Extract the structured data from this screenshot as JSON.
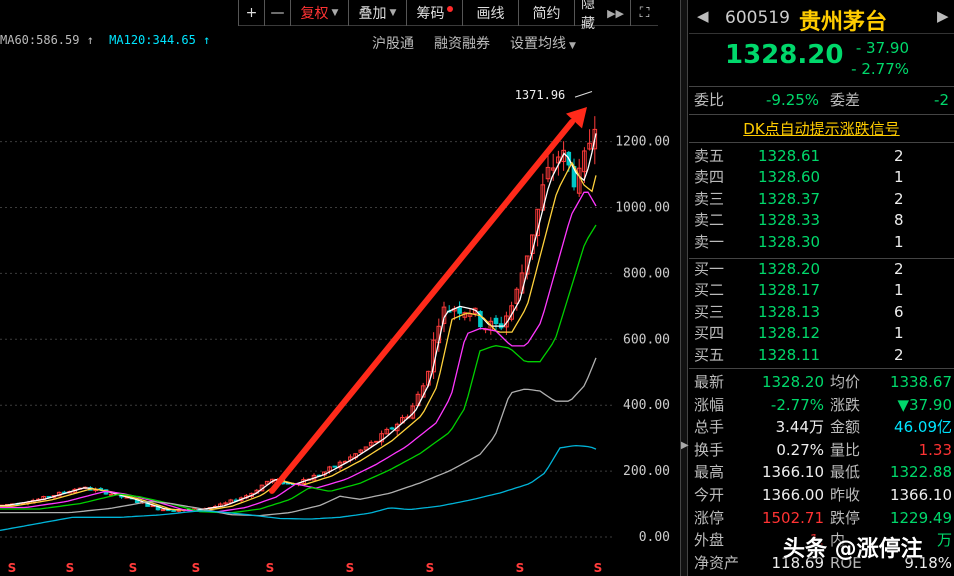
{
  "toolbar": {
    "plus": "+",
    "minus": "—",
    "fuquan": "复权",
    "diejia": "叠加",
    "chouma": "筹码",
    "huaxian": "画线",
    "jianyue": "简约",
    "yincang": "隐藏",
    "expand": "⛶"
  },
  "ma": {
    "ma60": "MA60:586.59 ↑",
    "ma120": "MA120:344.65 ↑"
  },
  "links": {
    "hugutong": "沪股通",
    "rongzi": "融资融券",
    "shezhi": "设置均线"
  },
  "chart_data": {
    "type": "candlestick",
    "y_ticks": [
      "1200.00",
      "1000.00",
      "800.00",
      "600.00",
      "400.00",
      "200.00",
      "0.00"
    ],
    "y_values": [
      1200,
      1000,
      800,
      600,
      400,
      200,
      0
    ],
    "ylim": [
      -15,
      1400
    ],
    "peak_label": "1371.96",
    "colors": {
      "up": "#ff3b3b",
      "down": "#00c8c8",
      "ma5": "#ffffff",
      "ma10": "#ffd23c",
      "ma20": "#ff37ff",
      "ma30": "#00d000",
      "ma60": "#b0b0b0",
      "ma120": "#00b4d8",
      "arrow": "#ff2a1a",
      "grid": "#3c3c3c",
      "tick": "#cccccc"
    }
  },
  "quote": {
    "code": "600519",
    "name": "贵州茅台",
    "price": "1328.20",
    "change": "- 37.90",
    "change_pct": "- 2.77%",
    "weibi_label": "委比",
    "weibi": "-9.25%",
    "weicha_label": "委差",
    "weicha": "-2",
    "dk_signal": "DK点自动提示涨跌信号"
  },
  "sell_orders": [
    {
      "label": "卖五",
      "price": "1328.61",
      "vol": "2"
    },
    {
      "label": "卖四",
      "price": "1328.60",
      "vol": "1"
    },
    {
      "label": "卖三",
      "price": "1328.37",
      "vol": "2"
    },
    {
      "label": "卖二",
      "price": "1328.33",
      "vol": "8"
    },
    {
      "label": "卖一",
      "price": "1328.30",
      "vol": "1"
    }
  ],
  "buy_orders": [
    {
      "label": "买一",
      "price": "1328.20",
      "vol": "2"
    },
    {
      "label": "买二",
      "price": "1328.17",
      "vol": "1"
    },
    {
      "label": "买三",
      "price": "1328.13",
      "vol": "6"
    },
    {
      "label": "买四",
      "price": "1328.12",
      "vol": "1"
    },
    {
      "label": "买五",
      "price": "1328.11",
      "vol": "2"
    }
  ],
  "stats": [
    {
      "l1": "最新",
      "v1": "1328.20",
      "c1": "green",
      "l2": "均价",
      "v2": "1338.67",
      "c2": "green"
    },
    {
      "l1": "涨幅",
      "v1": "-2.77%",
      "c1": "green",
      "l2": "涨跌",
      "v2": "▼37.90",
      "c2": "green"
    },
    {
      "l1": "总手",
      "v1": "3.44万",
      "c1": "white",
      "l2": "金额",
      "v2": "46.09亿",
      "c2": "cyan"
    },
    {
      "l1": "换手",
      "v1": "0.27%",
      "c1": "white",
      "l2": "量比",
      "v2": "1.33",
      "c2": "red"
    },
    {
      "l1": "最高",
      "v1": "1366.10",
      "c1": "white",
      "l2": "最低",
      "v2": "1322.88",
      "c2": "green"
    },
    {
      "l1": "今开",
      "v1": "1366.00",
      "c1": "white",
      "l2": "昨收",
      "v2": "1366.10",
      "c2": "white"
    },
    {
      "l1": "涨停",
      "v1": "1502.71",
      "c1": "red",
      "l2": "跌停",
      "v2": "1229.49",
      "c2": "green"
    },
    {
      "l1": "外盘",
      "v1": "1.",
      "c1": "red",
      "l2": "内",
      "v2": "万",
      "c2": "green"
    },
    {
      "l1": "净资产",
      "v1": "118.69",
      "c1": "white",
      "l2": "ROE",
      "v2": "9.18%",
      "c2": "white"
    }
  ],
  "watermark": "头条 @涨停注"
}
